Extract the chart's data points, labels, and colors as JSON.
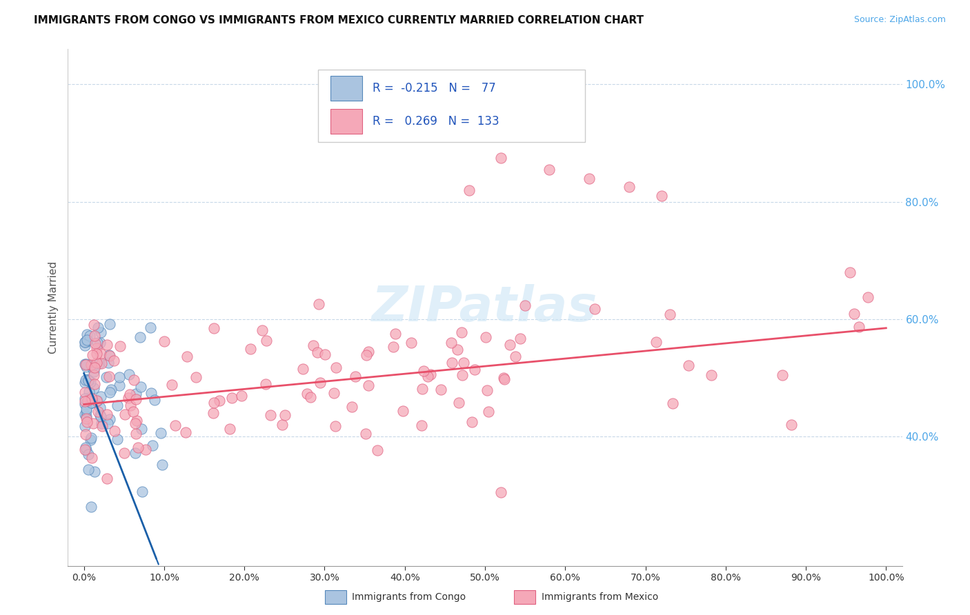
{
  "title": "IMMIGRANTS FROM CONGO VS IMMIGRANTS FROM MEXICO CURRENTLY MARRIED CORRELATION CHART",
  "source": "Source: ZipAtlas.com",
  "ylabel": "Currently Married",
  "congo_R": -0.215,
  "congo_N": 77,
  "mexico_R": 0.269,
  "mexico_N": 133,
  "congo_color": "#aac4e0",
  "mexico_color": "#f5a8b8",
  "congo_edge_color": "#5588bb",
  "mexico_edge_color": "#e06080",
  "congo_line_color": "#1a5fa8",
  "mexico_line_color": "#e8506a",
  "background_color": "#ffffff",
  "watermark": "ZIPatlas",
  "grid_color": "#c8d8e8",
  "ytick_color": "#4da6e8",
  "right_ytick_color": "#4da6e8",
  "xlim": [
    -0.02,
    1.02
  ],
  "ylim": [
    0.18,
    1.06
  ],
  "xtick_positions": [
    0.0,
    0.1,
    0.2,
    0.3,
    0.4,
    0.5,
    0.6,
    0.7,
    0.8,
    0.9,
    1.0
  ],
  "xtick_labels": [
    "0.0%",
    "10.0%",
    "20.0%",
    "30.0%",
    "40.0%",
    "50.0%",
    "60.0%",
    "70.0%",
    "80.0%",
    "90.0%",
    "100.0%"
  ],
  "ytick_positions": [
    0.4,
    0.6,
    0.8,
    1.0
  ],
  "ytick_labels": [
    "40.0%",
    "60.0%",
    "80.0%",
    "100.0%"
  ],
  "congo_line_x0": 0.0,
  "congo_line_y0": 0.508,
  "congo_line_slope": -3.5,
  "congo_line_solid_end": 0.09,
  "congo_line_dash_end": 0.18,
  "mexico_line_x0": 0.0,
  "mexico_line_y0": 0.455,
  "mexico_line_x1": 1.0,
  "mexico_line_y1": 0.585
}
